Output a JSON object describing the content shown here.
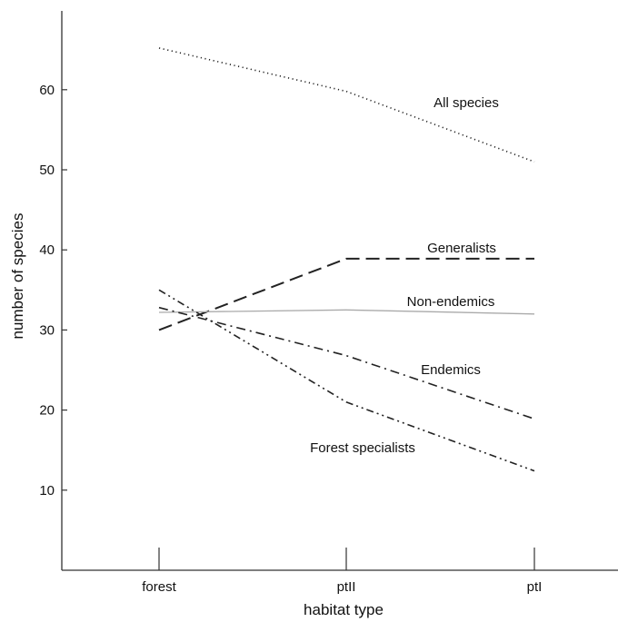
{
  "chart_data": {
    "type": "line",
    "title": "",
    "xlabel": "habitat type",
    "ylabel": "number of species",
    "categories": [
      "forest",
      "ptII",
      "ptI"
    ],
    "ylim": [
      0,
      72
    ],
    "yticks": [
      10,
      20,
      30,
      40,
      50,
      60
    ],
    "grid": false,
    "legend": "inline labels",
    "series": [
      {
        "name": "All species",
        "values": [
          65.2,
          59.8,
          51.0
        ],
        "dash": "dotted",
        "color": "#222222"
      },
      {
        "name": "Generalists",
        "values": [
          30.0,
          38.9,
          38.9
        ],
        "dash": "dashed",
        "color": "#222222"
      },
      {
        "name": "Non-endemics",
        "values": [
          32.2,
          32.5,
          32.0
        ],
        "dash": "solid-thin",
        "color": "#aaaaaa"
      },
      {
        "name": "Endemics",
        "values": [
          32.8,
          26.8,
          18.9
        ],
        "dash": "dash-dot",
        "color": "#222222"
      },
      {
        "name": "Forest specialists",
        "values": [
          35.0,
          21.0,
          12.4
        ],
        "dash": "dash-dot-dot",
        "color": "#222222"
      }
    ]
  }
}
